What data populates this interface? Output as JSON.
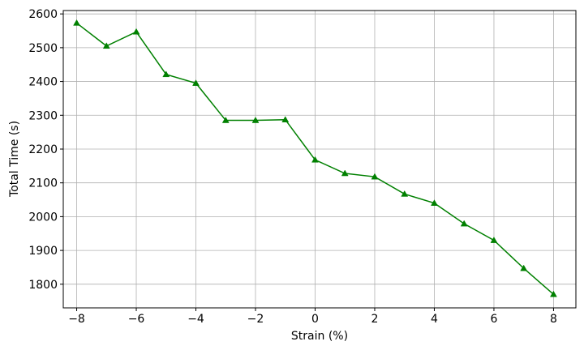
{
  "chart_data": {
    "type": "line",
    "title": "",
    "xlabel": "Strain (%)",
    "ylabel": "Total Time (s)",
    "xlim": [
      -8.45,
      8.75
    ],
    "ylim": [
      1730,
      2610
    ],
    "xticks": [
      -8,
      -6,
      -4,
      -2,
      0,
      2,
      4,
      6,
      8
    ],
    "xtick_labels": [
      "−8",
      "−6",
      "−4",
      "−2",
      "0",
      "2",
      "4",
      "6",
      "8"
    ],
    "yticks": [
      1800,
      1900,
      2000,
      2100,
      2200,
      2300,
      2400,
      2500,
      2600
    ],
    "ytick_labels": [
      "1800",
      "1900",
      "2000",
      "2100",
      "2200",
      "2300",
      "2400",
      "2500",
      "2600"
    ],
    "grid": true,
    "legend": "none",
    "series": [
      {
        "color": "#008000",
        "marker": "triangle-up",
        "x": [
          -8,
          -7,
          -6,
          -5,
          -4,
          -3,
          -2,
          -1,
          0,
          1,
          2,
          3,
          4,
          5,
          6,
          7,
          8
        ],
        "y": [
          2573,
          2505,
          2547,
          2421,
          2395,
          2285,
          2285,
          2287,
          2168,
          2128,
          2118,
          2067,
          2040,
          1979,
          1930,
          1847,
          1770
        ]
      }
    ]
  }
}
